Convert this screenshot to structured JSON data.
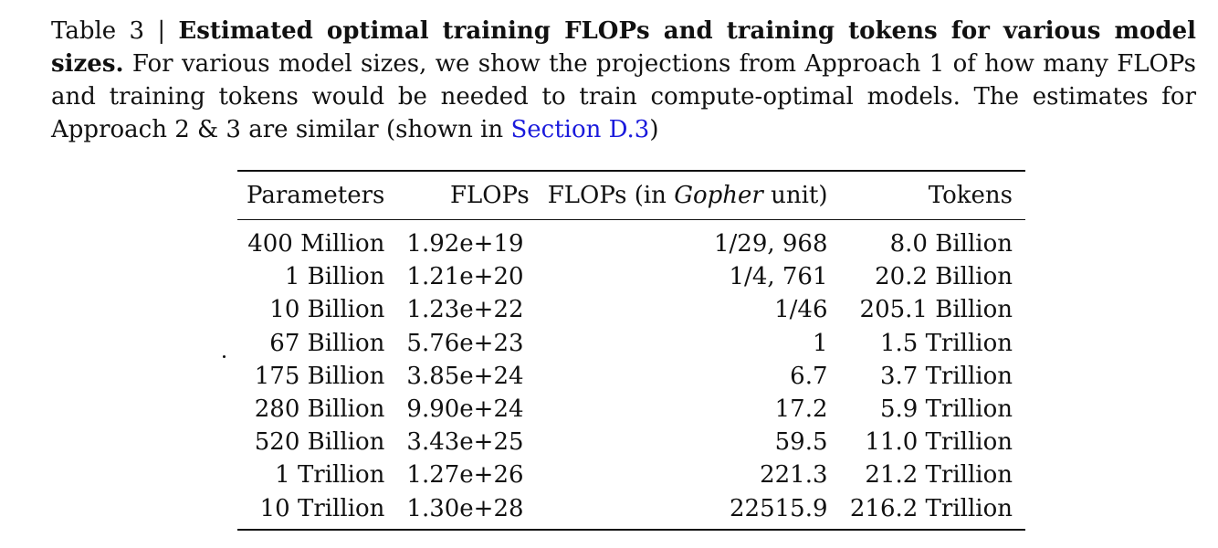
{
  "caption": {
    "label": "Table 3 | ",
    "title": "Estimated optimal training FLOPs and training tokens for various model sizes.",
    "body": " For various model sizes, we show the projections from Approach 1 of how many FLOPs and training tokens would be needed to train compute-optimal models. The estimates for Approach 2 & 3 are similar (shown in ",
    "link_text": "Section D.3",
    "closing": ")"
  },
  "table": {
    "headers": {
      "parameters": "Parameters",
      "flops": "FLOPs",
      "gopher_prefix": "FLOPs (in ",
      "gopher_italic": "Gopher",
      "gopher_suffix": " unit)",
      "tokens": "Tokens"
    },
    "rows": [
      {
        "parameters": "400 Million",
        "flops": "1.92e+19",
        "gopher": "1/29, 968",
        "tokens": "8.0 Billion"
      },
      {
        "parameters": "1 Billion",
        "flops": "1.21e+20",
        "gopher": "1/4, 761",
        "tokens": "20.2 Billion"
      },
      {
        "parameters": "10 Billion",
        "flops": "1.23e+22",
        "gopher": "1/46",
        "tokens": "205.1 Billion"
      },
      {
        "parameters": "67 Billion",
        "flops": "5.76e+23",
        "gopher": "1",
        "tokens": "1.5 Trillion"
      },
      {
        "parameters": "175 Billion",
        "flops": "3.85e+24",
        "gopher": "6.7",
        "tokens": "3.7 Trillion"
      },
      {
        "parameters": "280 Billion",
        "flops": "9.90e+24",
        "gopher": "17.2",
        "tokens": "5.9 Trillion"
      },
      {
        "parameters": "520 Billion",
        "flops": "3.43e+25",
        "gopher": "59.5",
        "tokens": "11.0 Trillion"
      },
      {
        "parameters": "1 Trillion",
        "flops": "1.27e+26",
        "gopher": "221.3",
        "tokens": "21.2 Trillion"
      },
      {
        "parameters": "10 Trillion",
        "flops": "1.30e+28",
        "gopher": "22515.9",
        "tokens": "216.2 Trillion"
      }
    ]
  }
}
